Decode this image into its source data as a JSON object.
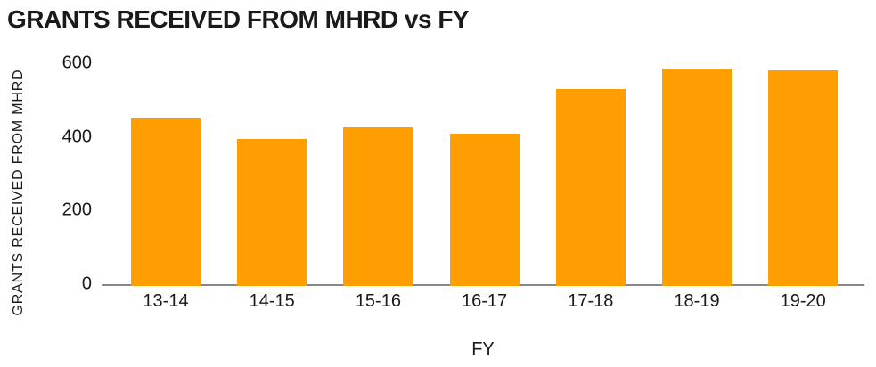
{
  "chart_data": {
    "type": "bar",
    "title": "GRANTS RECEIVED FROM MHRD vs FY",
    "xlabel": "FY",
    "ylabel": "GRANTS RECEIVED FROM MHRD",
    "categories": [
      "13-14",
      "14-15",
      "15-16",
      "16-17",
      "17-18",
      "18-19",
      "19-20"
    ],
    "values": [
      450,
      395,
      425,
      410,
      530,
      585,
      580
    ],
    "ylim": [
      0,
      600
    ],
    "y_ticks": [
      0,
      200,
      400,
      600
    ],
    "grid": false,
    "legend": false,
    "bar_color": "#FF9E00",
    "axis_line_color": "#888888",
    "text_color": "#1A1A1A",
    "background": "#FFFFFF"
  }
}
